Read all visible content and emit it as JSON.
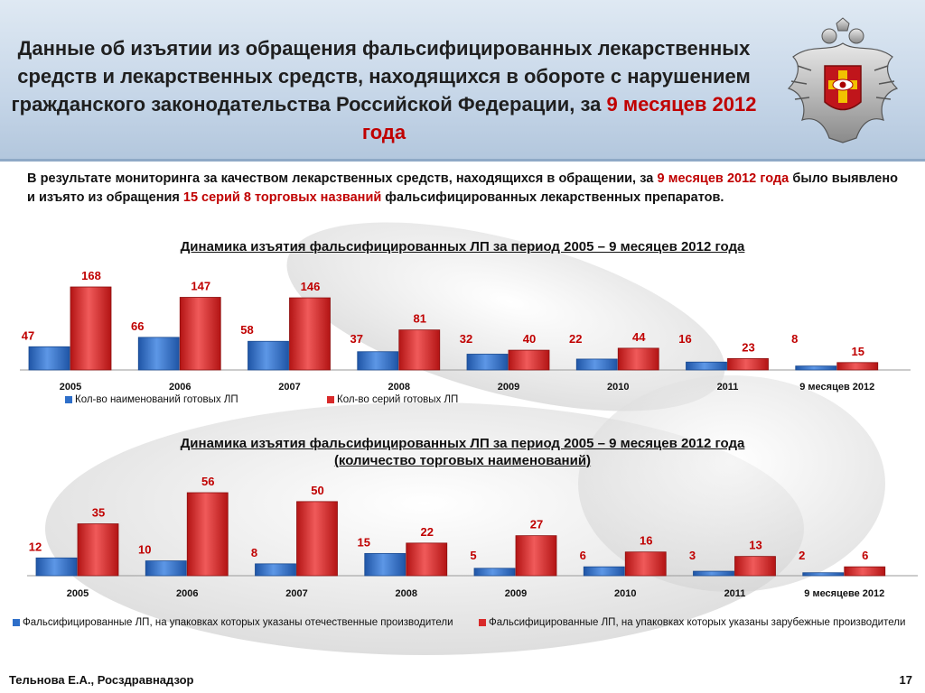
{
  "header": {
    "title_part1": "Данные об изъятии из обращения фальсифицированных лекарственных средств и лекарственных средств, находящихся в обороте с нарушением гражданского законодательства Российской Федерации, за ",
    "title_highlight": "9 месяцев 2012 года"
  },
  "intro": {
    "part1": "В результате мониторинга за качеством лекарственных средств, находящихся в обращении, за ",
    "hl1": "9 месяцев 2012 года",
    "part2": " было выявлено и изъято из обращения ",
    "hl2": "15 серий 8 торговых названий",
    "part3": " фальсифицированных лекарственных препаратов."
  },
  "colors": {
    "blue": "#2e6fc9",
    "red": "#d92a2a",
    "label_red": "#c00000",
    "accent": "#c00000"
  },
  "chart_data": [
    {
      "type": "bar",
      "title": "Динамика изъятия фальсифицированных ЛП за период 2005 – 9 месяцев 2012 года",
      "categories": [
        "2005",
        "2006",
        "2007",
        "2008",
        "2009",
        "2010",
        "2011",
        "9 месяцев 2012"
      ],
      "series": [
        {
          "name": "Кол-во наименований готовых ЛП",
          "color": "#2e6fc9",
          "values": [
            47,
            66,
            58,
            37,
            32,
            22,
            16,
            8
          ]
        },
        {
          "name": "Кол-во серий готовых ЛП",
          "color": "#d92a2a",
          "values": [
            168,
            147,
            146,
            81,
            40,
            44,
            23,
            15
          ]
        }
      ],
      "ylim": [
        0,
        168
      ],
      "grid": false,
      "legend": "bottom-left"
    },
    {
      "type": "bar",
      "title": "Динамика изъятия фальсифицированных ЛП за период 2005 – 9 месяцев 2012 года",
      "subtitle": "(количество торговых наименований)",
      "categories": [
        "2005",
        "2006",
        "2007",
        "2008",
        "2009",
        "2010",
        "2011",
        "9 месяцеве 2012"
      ],
      "series": [
        {
          "name": "Фальсифицированные ЛП, на упаковках которых указаны отечественные производители",
          "color": "#2e6fc9",
          "values": [
            12,
            10,
            8,
            15,
            5,
            6,
            3,
            2
          ]
        },
        {
          "name": "Фальсифицированные ЛП, на упаковках которых указаны зарубежные производители",
          "color": "#d92a2a",
          "values": [
            35,
            56,
            50,
            22,
            27,
            16,
            13,
            6
          ]
        }
      ],
      "ylim": [
        0,
        56
      ],
      "grid": false,
      "legend": "bottom"
    }
  ],
  "footer": {
    "author": "Тельнова Е.А., Росздравнадзор",
    "page": "17"
  }
}
